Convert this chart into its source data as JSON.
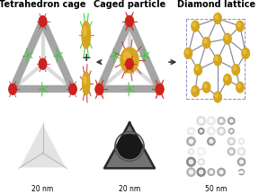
{
  "background_color": "#ffffff",
  "title_fontsize": 7,
  "label_fontsize": 5.5,
  "titles": [
    "Tetrahedron cage",
    "Caged particle",
    "Diamond lattice"
  ],
  "scale_labels": [
    "20 nm",
    "20 nm",
    "50 nm"
  ],
  "tet_color": "#999999",
  "tet_edge_color": "#555555",
  "vertex_red": "#cc2222",
  "gold_color": "#d4a520",
  "gold_highlight": "#f0c040",
  "spike_green": "#33cc33",
  "spike_red": "#cc3333",
  "lattice_line_color": "#555566",
  "lattice_box_color": "#6666aa",
  "arrow_color": "#333333"
}
